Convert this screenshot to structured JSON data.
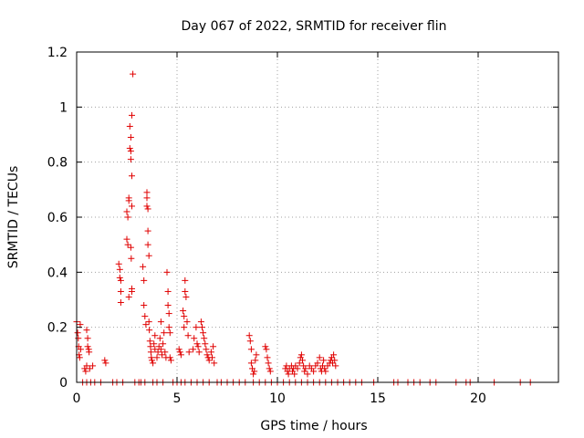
{
  "chart_data": {
    "type": "scatter",
    "title": "Day 067 of 2022, SRMTID for receiver flin",
    "xlabel": "GPS time / hours",
    "ylabel": "SRMTID / TECUs",
    "xlim": [
      0,
      24
    ],
    "ylim": [
      0,
      1.2
    ],
    "xticks": [
      0,
      5,
      10,
      15,
      20
    ],
    "xtick_labels": [
      "0",
      "5",
      "10",
      "15",
      "20"
    ],
    "yticks": [
      0,
      0.2,
      0.4,
      0.6,
      0.8,
      1.0,
      1.2
    ],
    "ytick_labels": [
      "0",
      "0.2",
      "0.4",
      "0.6",
      "0.8",
      "1",
      "1.2"
    ],
    "grid": true,
    "marker": "+",
    "color": "#e00000",
    "series": [
      {
        "name": "SRMTID",
        "points": [
          [
            0.0,
            0.22
          ],
          [
            0.05,
            0.18
          ],
          [
            0.08,
            0.16
          ],
          [
            0.1,
            0.13
          ],
          [
            0.12,
            0.1
          ],
          [
            0.15,
            0.09
          ],
          [
            0.18,
            0.21
          ],
          [
            0.2,
            0.12
          ],
          [
            0.4,
            0.05
          ],
          [
            0.45,
            0.04
          ],
          [
            0.5,
            0.06
          ],
          [
            0.5,
            0.19
          ],
          [
            0.55,
            0.16
          ],
          [
            0.55,
            0.13
          ],
          [
            0.6,
            0.12
          ],
          [
            0.62,
            0.11
          ],
          [
            0.65,
            0.05
          ],
          [
            0.8,
            0.06
          ],
          [
            1.4,
            0.08
          ],
          [
            1.45,
            0.07
          ],
          [
            2.1,
            0.43
          ],
          [
            2.15,
            0.41
          ],
          [
            2.15,
            0.38
          ],
          [
            2.2,
            0.37
          ],
          [
            2.2,
            0.33
          ],
          [
            2.2,
            0.29
          ],
          [
            2.5,
            0.62
          ],
          [
            2.5,
            0.52
          ],
          [
            2.55,
            0.6
          ],
          [
            2.55,
            0.5
          ],
          [
            2.6,
            0.67
          ],
          [
            2.6,
            0.66
          ],
          [
            2.6,
            0.31
          ],
          [
            2.65,
            0.93
          ],
          [
            2.65,
            0.85
          ],
          [
            2.7,
            0.89
          ],
          [
            2.7,
            0.84
          ],
          [
            2.7,
            0.81
          ],
          [
            2.7,
            0.49
          ],
          [
            2.72,
            0.45
          ],
          [
            2.75,
            0.97
          ],
          [
            2.75,
            0.75
          ],
          [
            2.75,
            0.64
          ],
          [
            2.75,
            0.34
          ],
          [
            2.75,
            0.33
          ],
          [
            2.8,
            1.12
          ],
          [
            3.3,
            0.42
          ],
          [
            3.35,
            0.37
          ],
          [
            3.35,
            0.28
          ],
          [
            3.4,
            0.24
          ],
          [
            3.45,
            0.21
          ],
          [
            3.5,
            0.69
          ],
          [
            3.5,
            0.67
          ],
          [
            3.5,
            0.64
          ],
          [
            3.55,
            0.63
          ],
          [
            3.55,
            0.55
          ],
          [
            3.55,
            0.5
          ],
          [
            3.6,
            0.46
          ],
          [
            3.6,
            0.22
          ],
          [
            3.62,
            0.19
          ],
          [
            3.65,
            0.15
          ],
          [
            3.68,
            0.13
          ],
          [
            3.7,
            0.11
          ],
          [
            3.72,
            0.09
          ],
          [
            3.75,
            0.08
          ],
          [
            3.8,
            0.07
          ],
          [
            3.85,
            0.14
          ],
          [
            3.9,
            0.17
          ],
          [
            3.9,
            0.12
          ],
          [
            4.0,
            0.09
          ],
          [
            4.05,
            0.11
          ],
          [
            4.1,
            0.13
          ],
          [
            4.15,
            0.16
          ],
          [
            4.2,
            0.22
          ],
          [
            4.2,
            0.12
          ],
          [
            4.25,
            0.1
          ],
          [
            4.3,
            0.14
          ],
          [
            4.35,
            0.18
          ],
          [
            4.4,
            0.11
          ],
          [
            4.45,
            0.09
          ],
          [
            4.5,
            0.4
          ],
          [
            4.55,
            0.33
          ],
          [
            4.55,
            0.28
          ],
          [
            4.6,
            0.25
          ],
          [
            4.6,
            0.2
          ],
          [
            4.65,
            0.18
          ],
          [
            4.65,
            0.09
          ],
          [
            4.7,
            0.08
          ],
          [
            5.1,
            0.12
          ],
          [
            5.15,
            0.11
          ],
          [
            5.2,
            0.1
          ],
          [
            5.3,
            0.26
          ],
          [
            5.35,
            0.24
          ],
          [
            5.35,
            0.2
          ],
          [
            5.4,
            0.37
          ],
          [
            5.4,
            0.33
          ],
          [
            5.45,
            0.31
          ],
          [
            5.5,
            0.22
          ],
          [
            5.55,
            0.17
          ],
          [
            5.6,
            0.11
          ],
          [
            5.8,
            0.12
          ],
          [
            5.85,
            0.16
          ],
          [
            5.95,
            0.2
          ],
          [
            6.0,
            0.14
          ],
          [
            6.05,
            0.13
          ],
          [
            6.1,
            0.11
          ],
          [
            6.2,
            0.22
          ],
          [
            6.25,
            0.2
          ],
          [
            6.3,
            0.18
          ],
          [
            6.35,
            0.16
          ],
          [
            6.4,
            0.14
          ],
          [
            6.45,
            0.12
          ],
          [
            6.5,
            0.1
          ],
          [
            6.55,
            0.09
          ],
          [
            6.6,
            0.08
          ],
          [
            6.7,
            0.11
          ],
          [
            6.75,
            0.09
          ],
          [
            6.8,
            0.13
          ],
          [
            6.85,
            0.07
          ],
          [
            8.6,
            0.17
          ],
          [
            8.65,
            0.15
          ],
          [
            8.7,
            0.12
          ],
          [
            8.7,
            0.07
          ],
          [
            8.75,
            0.05
          ],
          [
            8.8,
            0.03
          ],
          [
            8.85,
            0.04
          ],
          [
            8.9,
            0.08
          ],
          [
            8.95,
            0.1
          ],
          [
            9.4,
            0.13
          ],
          [
            9.45,
            0.12
          ],
          [
            9.5,
            0.09
          ],
          [
            9.55,
            0.07
          ],
          [
            9.6,
            0.05
          ],
          [
            9.65,
            0.04
          ],
          [
            10.4,
            0.05
          ],
          [
            10.45,
            0.06
          ],
          [
            10.5,
            0.04
          ],
          [
            10.55,
            0.03
          ],
          [
            10.6,
            0.05
          ],
          [
            10.7,
            0.06
          ],
          [
            10.75,
            0.04
          ],
          [
            10.8,
            0.05
          ],
          [
            10.85,
            0.03
          ],
          [
            10.9,
            0.06
          ],
          [
            11.0,
            0.05
          ],
          [
            11.1,
            0.07
          ],
          [
            11.15,
            0.09
          ],
          [
            11.2,
            0.1
          ],
          [
            11.25,
            0.08
          ],
          [
            11.3,
            0.06
          ],
          [
            11.35,
            0.04
          ],
          [
            11.4,
            0.05
          ],
          [
            11.5,
            0.03
          ],
          [
            11.6,
            0.06
          ],
          [
            11.7,
            0.05
          ],
          [
            11.8,
            0.04
          ],
          [
            11.9,
            0.06
          ],
          [
            12.0,
            0.07
          ],
          [
            12.1,
            0.09
          ],
          [
            12.15,
            0.05
          ],
          [
            12.2,
            0.04
          ],
          [
            12.25,
            0.06
          ],
          [
            12.3,
            0.08
          ],
          [
            12.35,
            0.05
          ],
          [
            12.4,
            0.04
          ],
          [
            12.5,
            0.06
          ],
          [
            12.6,
            0.07
          ],
          [
            12.65,
            0.08
          ],
          [
            12.7,
            0.09
          ],
          [
            12.75,
            0.07
          ],
          [
            12.8,
            0.1
          ],
          [
            12.85,
            0.08
          ],
          [
            12.9,
            0.06
          ],
          [
            0.3,
            0.0
          ],
          [
            0.5,
            0.0
          ],
          [
            0.7,
            0.0
          ],
          [
            0.9,
            0.0
          ],
          [
            1.2,
            0.0
          ],
          [
            1.8,
            0.0
          ],
          [
            2.0,
            0.0
          ],
          [
            2.3,
            0.0
          ],
          [
            2.9,
            0.0
          ],
          [
            3.1,
            0.0
          ],
          [
            3.2,
            0.0
          ],
          [
            3.4,
            0.0
          ],
          [
            3.8,
            0.0
          ],
          [
            4.0,
            0.0
          ],
          [
            4.3,
            0.0
          ],
          [
            4.8,
            0.0
          ],
          [
            5.0,
            0.0
          ],
          [
            5.2,
            0.0
          ],
          [
            5.4,
            0.0
          ],
          [
            5.7,
            0.0
          ],
          [
            6.0,
            0.0
          ],
          [
            6.3,
            0.0
          ],
          [
            6.6,
            0.0
          ],
          [
            7.0,
            0.0
          ],
          [
            7.2,
            0.0
          ],
          [
            7.5,
            0.0
          ],
          [
            7.8,
            0.0
          ],
          [
            8.1,
            0.0
          ],
          [
            8.4,
            0.0
          ],
          [
            8.8,
            0.0
          ],
          [
            9.1,
            0.0
          ],
          [
            9.4,
            0.0
          ],
          [
            9.7,
            0.0
          ],
          [
            10.0,
            0.0
          ],
          [
            10.3,
            0.0
          ],
          [
            10.6,
            0.0
          ],
          [
            10.9,
            0.0
          ],
          [
            11.2,
            0.0
          ],
          [
            11.5,
            0.0
          ],
          [
            11.8,
            0.0
          ],
          [
            12.1,
            0.0
          ],
          [
            12.4,
            0.0
          ],
          [
            12.7,
            0.0
          ],
          [
            13.0,
            0.0
          ],
          [
            13.3,
            0.0
          ],
          [
            13.6,
            0.0
          ],
          [
            13.9,
            0.0
          ],
          [
            14.2,
            0.0
          ],
          [
            14.8,
            0.0
          ],
          [
            15.8,
            0.0
          ],
          [
            16.0,
            0.0
          ],
          [
            16.5,
            0.0
          ],
          [
            16.8,
            0.0
          ],
          [
            17.1,
            0.0
          ],
          [
            17.6,
            0.0
          ],
          [
            17.9,
            0.0
          ],
          [
            18.9,
            0.0
          ],
          [
            19.4,
            0.0
          ],
          [
            19.6,
            0.0
          ],
          [
            20.8,
            0.0
          ],
          [
            22.1,
            0.0
          ],
          [
            22.6,
            0.0
          ]
        ]
      }
    ]
  }
}
